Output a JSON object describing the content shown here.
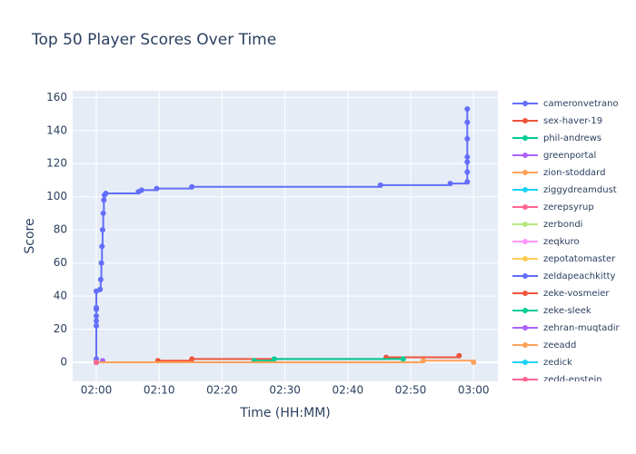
{
  "chart_data": {
    "type": "line",
    "title": "Top 50 Player Scores Over Time",
    "x_label": "Time (HH:MM)",
    "y_label": "Score",
    "line_shape": "hv",
    "grid": true,
    "xlim": [
      -3.76,
      63.87
    ],
    "ylim": [
      -11.5,
      164
    ],
    "xticks": [
      {
        "value": 0,
        "label": "02:00"
      },
      {
        "value": 10,
        "label": "02:10"
      },
      {
        "value": 20,
        "label": "02:20"
      },
      {
        "value": 30,
        "label": "02:30"
      },
      {
        "value": 40,
        "label": "02:40"
      },
      {
        "value": 50,
        "label": "02:50"
      },
      {
        "value": 60,
        "label": "03:00"
      }
    ],
    "yticks": [
      0,
      20,
      40,
      60,
      80,
      100,
      120,
      140,
      160
    ],
    "series": [
      {
        "name": "cameronvetrano",
        "color": "#636efa",
        "x": [
          0,
          0,
          0,
          0,
          0,
          0,
          0,
          0.6,
          0.7,
          0.8,
          0.9,
          1.0,
          1.1,
          1.2,
          1.3,
          1.5,
          6.7,
          7.2,
          9.6,
          15.2,
          45.2,
          56.3,
          59.0,
          59.0,
          59.0,
          59.0,
          59.0,
          59.0,
          59.0
        ],
        "values": [
          2,
          22,
          25,
          28,
          32,
          33,
          43,
          44,
          50,
          60,
          70,
          80,
          90,
          98,
          101,
          102,
          103,
          104,
          105,
          106,
          107,
          108,
          109,
          115,
          121,
          124,
          135,
          145,
          153
        ]
      },
      {
        "name": "sex-haver-19",
        "color": "#EF553B",
        "x": [
          0,
          9.8,
          15.2,
          46.1,
          57.7
        ],
        "values": [
          0,
          1,
          2,
          3,
          4
        ]
      },
      {
        "name": "phil-andrews",
        "color": "#00cc96",
        "x": [
          25.1,
          28.3,
          48.8
        ],
        "values": [
          1,
          2,
          2
        ]
      },
      {
        "name": "greenportal",
        "color": "#ab63fa",
        "x": [
          1.0
        ],
        "values": [
          1
        ]
      },
      {
        "name": "zion-stoddard",
        "color": "#FFA15A",
        "x": [
          0,
          52.0,
          60.0
        ],
        "values": [
          0,
          1,
          0
        ]
      },
      {
        "name": "ziggydreamdust",
        "color": "#19d3f3",
        "x": [
          0
        ],
        "values": [
          0
        ]
      },
      {
        "name": "zerepsyrup",
        "color": "#FF6692",
        "x": [
          0
        ],
        "values": [
          0
        ]
      },
      {
        "name": "zerbondi",
        "color": "#B6E880",
        "x": [
          0
        ],
        "values": [
          0
        ]
      },
      {
        "name": "zeqkuro",
        "color": "#FF97FF",
        "x": [
          0
        ],
        "values": [
          0
        ]
      },
      {
        "name": "zepotatomaster",
        "color": "#FECB52",
        "x": [
          0
        ],
        "values": [
          0
        ]
      },
      {
        "name": "zeldapeachkitty",
        "color": "#636efa",
        "x": [
          0
        ],
        "values": [
          0
        ]
      },
      {
        "name": "zeke-vosmeier",
        "color": "#EF553B",
        "x": [
          0
        ],
        "values": [
          0
        ]
      },
      {
        "name": "zeke-sleek",
        "color": "#00cc96",
        "x": [
          0
        ],
        "values": [
          0
        ]
      },
      {
        "name": "zehran-muqtadir",
        "color": "#ab63fa",
        "x": [
          0
        ],
        "values": [
          0
        ]
      },
      {
        "name": "zeeadd",
        "color": "#FFA15A",
        "x": [
          0
        ],
        "values": [
          0
        ]
      },
      {
        "name": "zedick",
        "color": "#19d3f3",
        "x": [
          0
        ],
        "values": [
          0
        ]
      },
      {
        "name": "zedd-epstein",
        "color": "#FF6692",
        "x": [
          0
        ],
        "values": [
          0
        ]
      }
    ]
  }
}
